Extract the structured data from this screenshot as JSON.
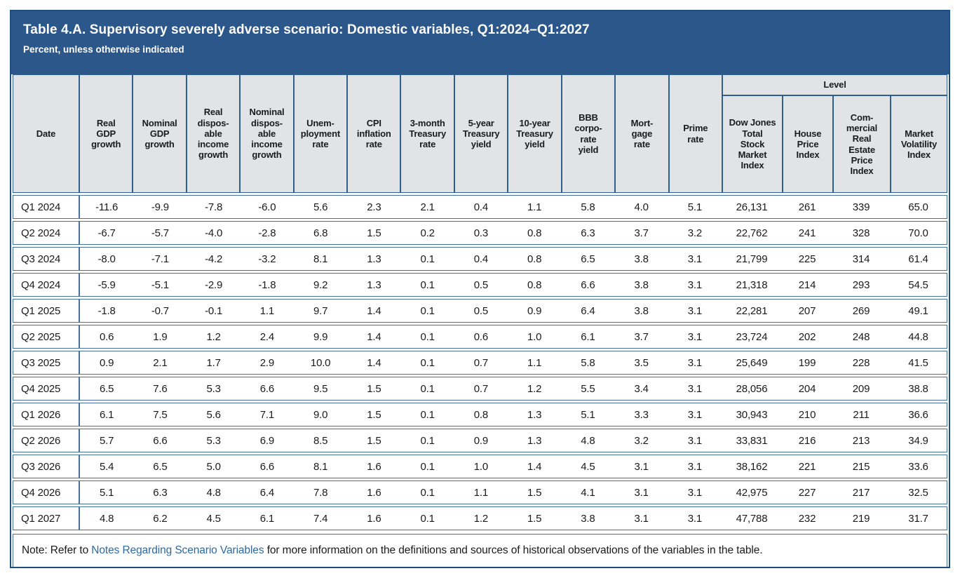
{
  "title_bar": {
    "title": "Table 4.A. Supervisory severely adverse scenario: Domestic variables, Q1:2024–Q1:2027",
    "subtitle": "Percent, unless otherwise indicated"
  },
  "table": {
    "headers": [
      "Date",
      "Real\nGDP\ngrowth",
      "Nominal\nGDP\ngrowth",
      "Real\ndispos-\nable\nincome\ngrowth",
      "Nominal\ndispos-\nable\nincome\ngrowth",
      "Unem-\nployment\nrate",
      "CPI\ninflation\nrate",
      "3-month\nTreasury\nrate",
      "5-year\nTreasury\nyield",
      "10-year\nTreasury\nyield",
      "BBB\ncorpo-\nrate\nyield",
      "Mort-\ngage\nrate",
      "Prime\nrate"
    ],
    "level_group": "Level",
    "level_headers": [
      "Dow Jones\nTotal\nStock\nMarket\nIndex",
      "House\nPrice\nIndex",
      "Com-\nmercial\nReal\nEstate\nPrice\nIndex",
      "Market\nVolatility\nIndex"
    ],
    "rows": [
      {
        "date": "Q1 2024",
        "values": [
          "-11.6",
          "-9.9",
          "-7.8",
          "-6.0",
          "5.6",
          "2.3",
          "2.1",
          "0.4",
          "1.1",
          "5.8",
          "4.0",
          "5.1",
          "26,131",
          "261",
          "339",
          "65.0"
        ]
      },
      {
        "date": "Q2 2024",
        "values": [
          "-6.7",
          "-5.7",
          "-4.0",
          "-2.8",
          "6.8",
          "1.5",
          "0.2",
          "0.3",
          "0.8",
          "6.3",
          "3.7",
          "3.2",
          "22,762",
          "241",
          "328",
          "70.0"
        ]
      },
      {
        "date": "Q3 2024",
        "values": [
          "-8.0",
          "-7.1",
          "-4.2",
          "-3.2",
          "8.1",
          "1.3",
          "0.1",
          "0.4",
          "0.8",
          "6.5",
          "3.8",
          "3.1",
          "21,799",
          "225",
          "314",
          "61.4"
        ]
      },
      {
        "date": "Q4 2024",
        "values": [
          "-5.9",
          "-5.1",
          "-2.9",
          "-1.8",
          "9.2",
          "1.3",
          "0.1",
          "0.5",
          "0.8",
          "6.6",
          "3.8",
          "3.1",
          "21,318",
          "214",
          "293",
          "54.5"
        ]
      },
      {
        "date": "Q1 2025",
        "values": [
          "-1.8",
          "-0.7",
          "-0.1",
          "1.1",
          "9.7",
          "1.4",
          "0.1",
          "0.5",
          "0.9",
          "6.4",
          "3.8",
          "3.1",
          "22,281",
          "207",
          "269",
          "49.1"
        ]
      },
      {
        "date": "Q2 2025",
        "values": [
          "0.6",
          "1.9",
          "1.2",
          "2.4",
          "9.9",
          "1.4",
          "0.1",
          "0.6",
          "1.0",
          "6.1",
          "3.7",
          "3.1",
          "23,724",
          "202",
          "248",
          "44.8"
        ]
      },
      {
        "date": "Q3 2025",
        "values": [
          "0.9",
          "2.1",
          "1.7",
          "2.9",
          "10.0",
          "1.4",
          "0.1",
          "0.7",
          "1.1",
          "5.8",
          "3.5",
          "3.1",
          "25,649",
          "199",
          "228",
          "41.5"
        ]
      },
      {
        "date": "Q4 2025",
        "values": [
          "6.5",
          "7.6",
          "5.3",
          "6.6",
          "9.5",
          "1.5",
          "0.1",
          "0.7",
          "1.2",
          "5.5",
          "3.4",
          "3.1",
          "28,056",
          "204",
          "209",
          "38.8"
        ]
      },
      {
        "date": "Q1 2026",
        "values": [
          "6.1",
          "7.5",
          "5.6",
          "7.1",
          "9.0",
          "1.5",
          "0.1",
          "0.8",
          "1.3",
          "5.1",
          "3.3",
          "3.1",
          "30,943",
          "210",
          "211",
          "36.6"
        ]
      },
      {
        "date": "Q2 2026",
        "values": [
          "5.7",
          "6.6",
          "5.3",
          "6.9",
          "8.5",
          "1.5",
          "0.1",
          "0.9",
          "1.3",
          "4.8",
          "3.2",
          "3.1",
          "33,831",
          "216",
          "213",
          "34.9"
        ]
      },
      {
        "date": "Q3 2026",
        "values": [
          "5.4",
          "6.5",
          "5.0",
          "6.6",
          "8.1",
          "1.6",
          "0.1",
          "1.0",
          "1.4",
          "4.5",
          "3.1",
          "3.1",
          "38,162",
          "221",
          "215",
          "33.6"
        ]
      },
      {
        "date": "Q4 2026",
        "values": [
          "5.1",
          "6.3",
          "4.8",
          "6.4",
          "7.8",
          "1.6",
          "0.1",
          "1.1",
          "1.5",
          "4.1",
          "3.1",
          "3.1",
          "42,975",
          "227",
          "217",
          "32.5"
        ]
      },
      {
        "date": "Q1 2027",
        "values": [
          "4.8",
          "6.2",
          "4.5",
          "6.1",
          "7.4",
          "1.6",
          "0.1",
          "1.2",
          "1.5",
          "3.8",
          "3.1",
          "3.1",
          "47,788",
          "232",
          "219",
          "31.7"
        ]
      }
    ]
  },
  "note": {
    "prefix": "Note: Refer to ",
    "link": "Notes Regarding Scenario Variables",
    "suffix": " for more information on the definitions and sources of historical observations of the variables in the table."
  },
  "colors": {
    "title_band": "#2B578A",
    "outer_border": "#1F4F80",
    "grid_border": "#44719F",
    "header_cell_bg": "#E2E3E5",
    "link": "#2D6A9F"
  }
}
